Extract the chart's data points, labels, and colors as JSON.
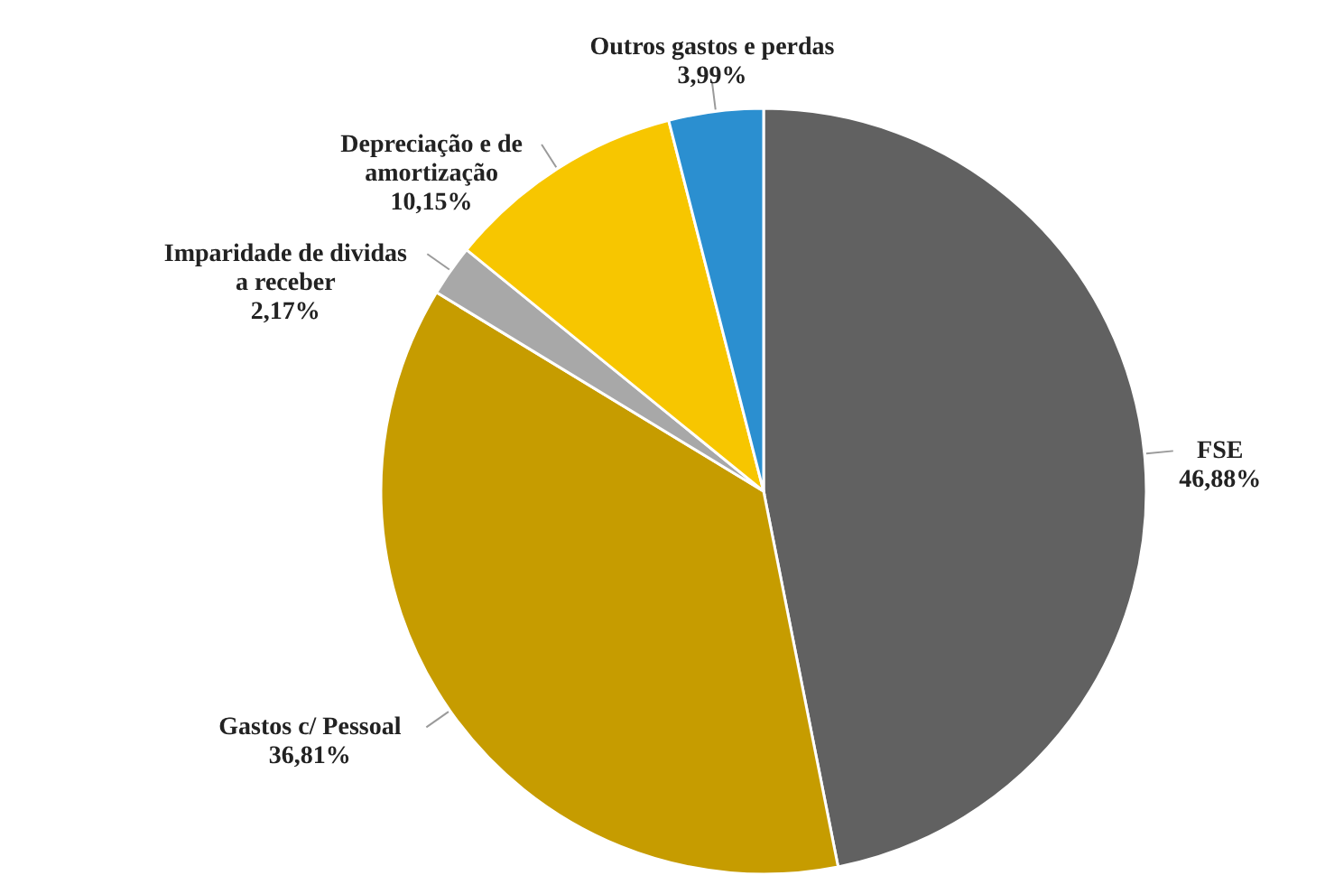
{
  "chart_data": {
    "type": "pie",
    "categories": [
      "FSE",
      "Gastos c/ Pessoal",
      "Imparidade de dividas a receber",
      "Depreciação e de amortização",
      "Outros gastos e perdas"
    ],
    "values": [
      46.88,
      36.81,
      2.17,
      10.15,
      3.99
    ],
    "colors": [
      "#616161",
      "#c69c00",
      "#a8a8a8",
      "#f7c600",
      "#2b8fd0"
    ],
    "value_labels": [
      "46,88%",
      "36,81%",
      "2,17%",
      "10,15%",
      "3,99%"
    ]
  }
}
